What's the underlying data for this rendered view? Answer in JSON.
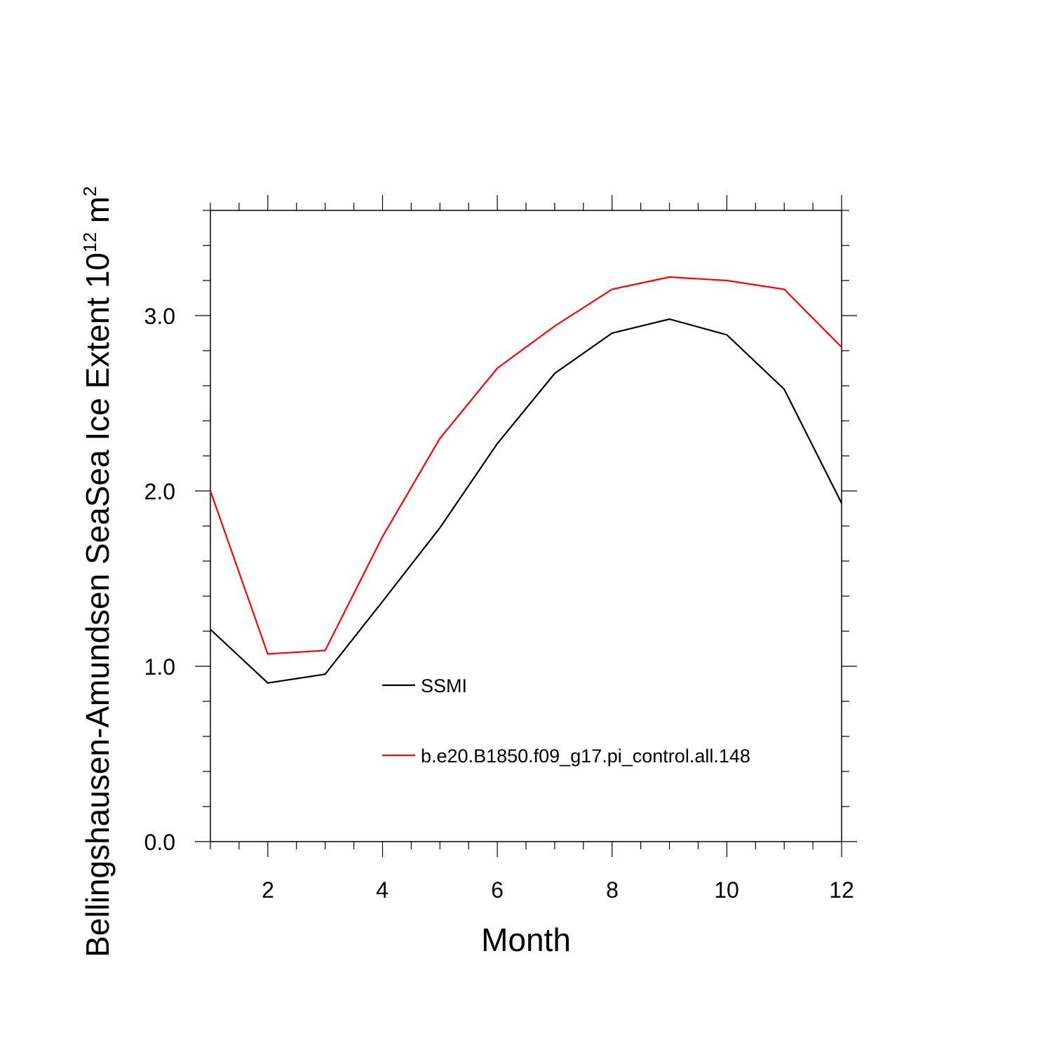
{
  "chart_data": {
    "type": "line",
    "title": "",
    "xlabel": "Month",
    "ylabel": {
      "main": "Bellingshausen-Amundsen SeaSea Ice Extent 10",
      "exponent": "12",
      "unit": "m",
      "unit_exponent": "2"
    },
    "xlim": [
      1,
      12
    ],
    "ylim": [
      0,
      3.6
    ],
    "x_ticks": [
      2,
      4,
      6,
      8,
      10,
      12
    ],
    "x_tick_labels": [
      "2",
      "4",
      "6",
      "8",
      "10",
      "12"
    ],
    "y_ticks": [
      0,
      1,
      2,
      3
    ],
    "y_tick_labels": [
      "0.0",
      "1.0",
      "2.0",
      "3.0"
    ],
    "x": [
      1,
      2,
      3,
      4,
      5,
      6,
      7,
      8,
      9,
      10,
      11,
      12
    ],
    "series": [
      {
        "name": "SSMI",
        "color": "#000000",
        "values": [
          1.21,
          0.905,
          0.955,
          1.37,
          1.79,
          2.27,
          2.67,
          2.9,
          2.98,
          2.89,
          2.58,
          1.93
        ]
      },
      {
        "name": "b.e20.B1850.f09_g17.pi_control.all.148",
        "color": "#ff0000",
        "values": [
          2.0,
          1.07,
          1.09,
          1.74,
          2.3,
          2.7,
          2.94,
          3.15,
          3.22,
          3.2,
          3.15,
          2.82
        ]
      }
    ],
    "legend_position": "inside-center"
  }
}
